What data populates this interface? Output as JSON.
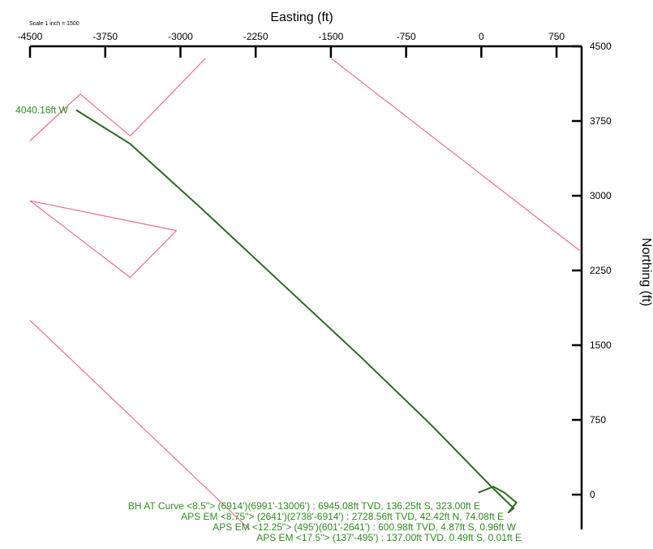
{
  "chart_data": {
    "type": "line",
    "title": "",
    "scale_note": "Scale 1 inch = 1500",
    "xlabel": "Easting (ft)",
    "ylabel": "Northing (ft)",
    "xlim": [
      -4500,
      1000
    ],
    "ylim": [
      -350,
      4500
    ],
    "x_ticks": [
      -4500,
      -3750,
      -3000,
      -2250,
      -1500,
      -750,
      0,
      750
    ],
    "x_tick_labels": [
      "-4500",
      "-3750",
      "-3000",
      "-2250",
      "-1500",
      "-750",
      "0",
      "750"
    ],
    "y_ticks": [
      0,
      750,
      1500,
      2250,
      3000,
      3750,
      4500
    ],
    "y_tick_labels": [
      "0",
      "750",
      "1500",
      "2250",
      "3000",
      "3750",
      "4500"
    ],
    "grid": false,
    "colors": {
      "survey": "#2a6a1f",
      "lease": "#e8708a",
      "annotation": "#2e8b1e",
      "axis": "#000000"
    },
    "series": [
      {
        "role": "wellpath",
        "x": [
          -30,
          120,
          230,
          350,
          270,
          323,
          100,
          -500,
          -1200,
          -2000,
          -2800,
          -3500,
          -4040
        ],
        "y": [
          20,
          80,
          20,
          -80,
          -180,
          -137,
          80,
          700,
          1380,
          2130,
          2880,
          3520,
          3860
        ]
      },
      {
        "role": "lease-line-1",
        "x": [
          -4500,
          -4000,
          -3500,
          -2750
        ],
        "y": [
          3550,
          4020,
          3600,
          4380
        ]
      },
      {
        "role": "lease-line-2",
        "x": [
          -4500,
          -3040,
          -3500,
          -4500
        ],
        "y": [
          2950,
          2650,
          2180,
          2950
        ]
      },
      {
        "role": "lease-line-3",
        "x": [
          -4500,
          -2310
        ],
        "y": [
          1750,
          -350
        ]
      },
      {
        "role": "lease-line-4",
        "x": [
          -1500,
          980
        ],
        "y": [
          4380,
          2450
        ]
      }
    ],
    "annotations": [
      {
        "text": "4040.16ft W",
        "x": -4040,
        "y": 3860,
        "anchor": "end"
      },
      {
        "text": "BH AT Curve <8.5\"> (6914')(6991'-13006') : 6945.08ft TVD, 136.25ft S, 323.00ft E",
        "anchor": "end"
      },
      {
        "text": "APS EM <8.75\"> (2641')(2738'-6914') : 2728.56ft TVD, 42.42ft N, 74.08ft E",
        "anchor": "end"
      },
      {
        "text": "APS EM <12.25\"> (495')(601'-2641') : 600.98ft TVD, 4.87ft S, 0.96ft W",
        "anchor": "end"
      },
      {
        "text": "APS EM <17.5\"> (137'-495') : 137.00ft TVD, 0.49ft S, 0.01ft E",
        "anchor": "end"
      }
    ]
  }
}
